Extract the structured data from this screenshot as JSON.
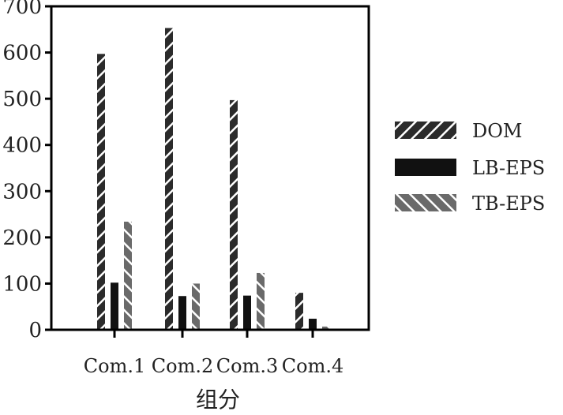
{
  "chart_data": {
    "type": "bar",
    "title": "",
    "xlabel": "组分",
    "ylabel": "",
    "ylim": [
      0,
      700
    ],
    "yticks": [
      0,
      100,
      200,
      300,
      400,
      500,
      600,
      700
    ],
    "categories": [
      "Com.1",
      "Com.2",
      "Com.3",
      "Com.4"
    ],
    "series": [
      {
        "name": "DOM",
        "values": [
          597,
          653,
          497,
          80
        ],
        "color": "#2b2b2b",
        "pattern": "hatch-forward"
      },
      {
        "name": "LB-EPS",
        "values": [
          102,
          73,
          74,
          24
        ],
        "color": "#111111",
        "pattern": "solid"
      },
      {
        "name": "TB-EPS",
        "values": [
          234,
          100,
          123,
          7
        ],
        "color": "#6a6a6a",
        "pattern": "hatch-backward"
      }
    ],
    "grid": false,
    "legend_position": "right"
  }
}
